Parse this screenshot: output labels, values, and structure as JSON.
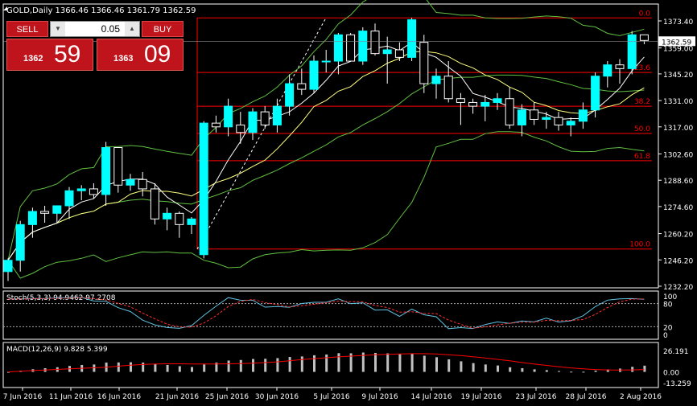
{
  "window": {
    "title": "GOLD,Daily",
    "ohlc": "1366.46 1366.46 1361.79 1362.59"
  },
  "trade": {
    "sell_label": "SELL",
    "buy_label": "BUY",
    "lot": "0.05",
    "sell_small": "1362",
    "sell_big": "59",
    "buy_small": "1363",
    "buy_big": "09"
  },
  "price_axis": {
    "labels": [
      "1373.40",
      "1359.00",
      "1345.20",
      "1331.00",
      "1317.00",
      "1302.60",
      "1288.60",
      "1274.60",
      "1260.20",
      "1246.20",
      "1232.20"
    ],
    "current": "1362.59"
  },
  "fib": {
    "levels": [
      "0.0",
      "23.6",
      "38.2",
      "50.0",
      "61.8",
      "100.0"
    ]
  },
  "stoch": {
    "label": "Stoch(5,3,3) 94.9462 97.2708",
    "levels": [
      "100",
      "80",
      "20",
      "0"
    ]
  },
  "macd": {
    "label": "MACD(12,26,9) 9.828 5.399",
    "levels": [
      "26.191",
      "0.00",
      "-13.259"
    ]
  },
  "x_axis": {
    "labels": [
      "7 Jun 2016",
      "11 Jun 2016",
      "16 Jun 2016",
      "21 Jun 2016",
      "25 Jun 2016",
      "30 Jun 2016",
      "5 Jul 2016",
      "9 Jul 2016",
      "14 Jul 2016",
      "19 Jul 2016",
      "23 Jul 2016",
      "28 Jul 2016",
      "2 Aug 2016"
    ]
  },
  "colors": {
    "bull": "#00ffff",
    "bear": "#000000",
    "line": "#ff0000",
    "ma_fast": "#ffffff",
    "ma_slow": "#ffff80",
    "bb": "#60c040",
    "stoch_main": "#60c0e0",
    "stoch_sig": "#ff3030",
    "macd_hist": "#c0c0c0"
  },
  "chart_data": {
    "type": "candlestick",
    "symbol": "GOLD",
    "timeframe": "Daily",
    "candles": [
      {
        "o": 1240,
        "h": 1247,
        "l": 1235,
        "c": 1246
      },
      {
        "o": 1246,
        "h": 1267,
        "l": 1240,
        "c": 1265
      },
      {
        "o": 1265,
        "h": 1274,
        "l": 1258,
        "c": 1272
      },
      {
        "o": 1272,
        "h": 1275,
        "l": 1266,
        "c": 1271
      },
      {
        "o": 1271,
        "h": 1274,
        "l": 1266,
        "c": 1275
      },
      {
        "o": 1275,
        "h": 1285,
        "l": 1268,
        "c": 1283
      },
      {
        "o": 1283,
        "h": 1286,
        "l": 1278,
        "c": 1284
      },
      {
        "o": 1284,
        "h": 1287,
        "l": 1279,
        "c": 1281
      },
      {
        "o": 1281,
        "h": 1309,
        "l": 1275,
        "c": 1306
      },
      {
        "o": 1306,
        "h": 1306,
        "l": 1282,
        "c": 1286
      },
      {
        "o": 1286,
        "h": 1292,
        "l": 1283,
        "c": 1289
      },
      {
        "o": 1289,
        "h": 1293,
        "l": 1280,
        "c": 1284
      },
      {
        "o": 1284,
        "h": 1287,
        "l": 1265,
        "c": 1268
      },
      {
        "o": 1268,
        "h": 1274,
        "l": 1262,
        "c": 1271
      },
      {
        "o": 1271,
        "h": 1272,
        "l": 1258,
        "c": 1265
      },
      {
        "o": 1265,
        "h": 1269,
        "l": 1260,
        "c": 1268
      },
      {
        "o": 1249,
        "h": 1320,
        "l": 1247,
        "c": 1319
      },
      {
        "o": 1319,
        "h": 1323,
        "l": 1314,
        "c": 1317
      },
      {
        "o": 1317,
        "h": 1332,
        "l": 1312,
        "c": 1328
      },
      {
        "o": 1318,
        "h": 1325,
        "l": 1308,
        "c": 1314
      },
      {
        "o": 1314,
        "h": 1327,
        "l": 1310,
        "c": 1325
      },
      {
        "o": 1325,
        "h": 1328,
        "l": 1316,
        "c": 1318
      },
      {
        "o": 1318,
        "h": 1332,
        "l": 1314,
        "c": 1328
      },
      {
        "o": 1328,
        "h": 1345,
        "l": 1323,
        "c": 1340
      },
      {
        "o": 1340,
        "h": 1348,
        "l": 1334,
        "c": 1337
      },
      {
        "o": 1337,
        "h": 1355,
        "l": 1335,
        "c": 1352
      },
      {
        "o": 1352,
        "h": 1358,
        "l": 1346,
        "c": 1352
      },
      {
        "o": 1352,
        "h": 1367,
        "l": 1345,
        "c": 1366
      },
      {
        "o": 1366,
        "h": 1367,
        "l": 1352,
        "c": 1352
      },
      {
        "o": 1352,
        "h": 1370,
        "l": 1350,
        "c": 1368
      },
      {
        "o": 1368,
        "h": 1372,
        "l": 1355,
        "c": 1356
      },
      {
        "o": 1356,
        "h": 1365,
        "l": 1340,
        "c": 1358
      },
      {
        "o": 1358,
        "h": 1362,
        "l": 1352,
        "c": 1354
      },
      {
        "o": 1354,
        "h": 1375,
        "l": 1352,
        "c": 1374
      },
      {
        "o": 1362,
        "h": 1366,
        "l": 1335,
        "c": 1340
      },
      {
        "o": 1340,
        "h": 1348,
        "l": 1332,
        "c": 1344
      },
      {
        "o": 1344,
        "h": 1352,
        "l": 1330,
        "c": 1332
      },
      {
        "o": 1332,
        "h": 1335,
        "l": 1318,
        "c": 1330
      },
      {
        "o": 1330,
        "h": 1332,
        "l": 1324,
        "c": 1328
      },
      {
        "o": 1328,
        "h": 1334,
        "l": 1320,
        "c": 1330
      },
      {
        "o": 1330,
        "h": 1335,
        "l": 1326,
        "c": 1332
      },
      {
        "o": 1332,
        "h": 1338,
        "l": 1316,
        "c": 1318
      },
      {
        "o": 1318,
        "h": 1329,
        "l": 1312,
        "c": 1326
      },
      {
        "o": 1326,
        "h": 1330,
        "l": 1318,
        "c": 1321
      },
      {
        "o": 1321,
        "h": 1325,
        "l": 1316,
        "c": 1322
      },
      {
        "o": 1322,
        "h": 1325,
        "l": 1315,
        "c": 1318
      },
      {
        "o": 1318,
        "h": 1322,
        "l": 1312,
        "c": 1320
      },
      {
        "o": 1320,
        "h": 1330,
        "l": 1316,
        "c": 1326
      },
      {
        "o": 1326,
        "h": 1346,
        "l": 1322,
        "c": 1344
      },
      {
        "o": 1344,
        "h": 1352,
        "l": 1338,
        "c": 1350
      },
      {
        "o": 1350,
        "h": 1353,
        "l": 1340,
        "c": 1348
      },
      {
        "o": 1348,
        "h": 1368,
        "l": 1345,
        "c": 1366
      },
      {
        "o": 1366,
        "h": 1366,
        "l": 1361,
        "c": 1363
      }
    ],
    "fib_retracement": {
      "high": 1375,
      "low": 1252,
      "levels": [
        0,
        23.6,
        38.2,
        50.0,
        61.8,
        100.0
      ]
    },
    "stochastic": {
      "k": 94.9462,
      "d": 97.2708
    },
    "macd": {
      "main": 9.828,
      "signal": 5.399
    }
  }
}
